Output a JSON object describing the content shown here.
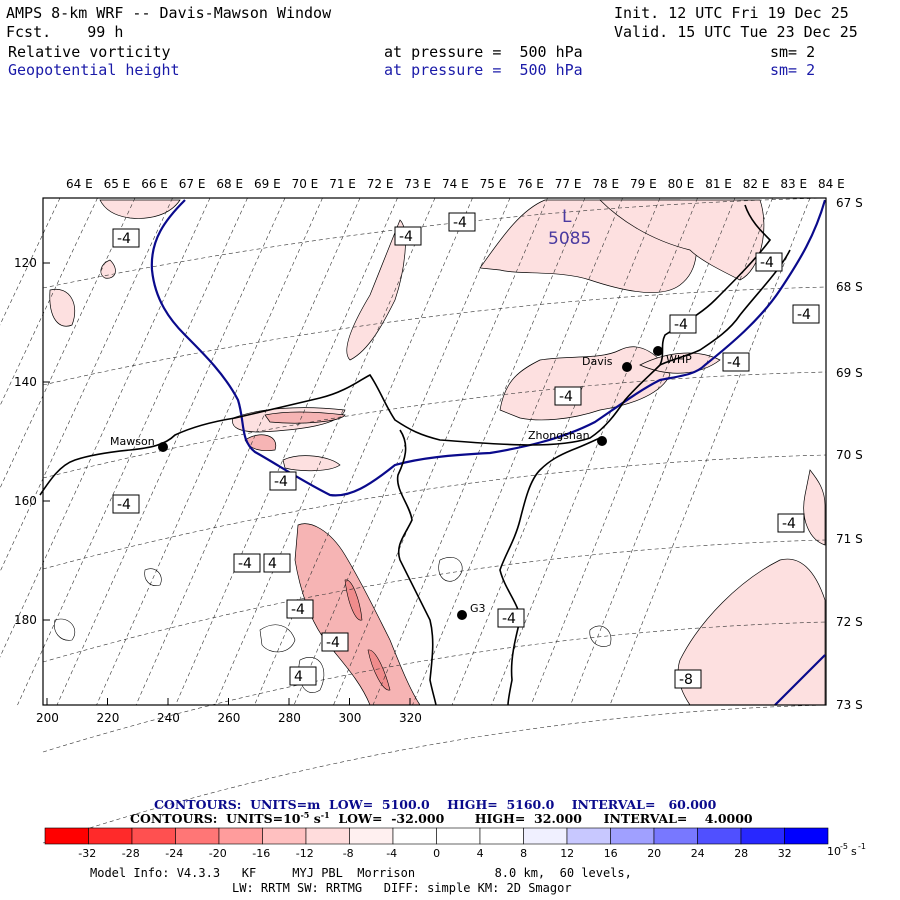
{
  "header": {
    "title": "AMPS 8-km WRF -- Davis-Mawson Window",
    "init": "Init. 12 UTC Fri 19 Dec 25",
    "fcst": "Fcst.    99 h",
    "valid": "Valid. 15 UTC Tue 23 Dec 25",
    "field1": "Relative vorticity",
    "field1_level": "at pressure =  500 hPa",
    "field1_sm": "sm= 2",
    "field2": "Geopotential height",
    "field2_level": "at pressure =  500 hPa",
    "field2_sm": "sm= 2"
  },
  "map": {
    "top_lon_labels": [
      "64 E",
      "65 E",
      "66 E",
      "67 E",
      "68 E",
      "69 E",
      "70 E",
      "71 E",
      "72 E",
      "73 E",
      "74 E",
      "75 E",
      "76 E",
      "77 E",
      "78 E",
      "79 E",
      "80 E",
      "81 E",
      "82 E",
      "83 E",
      "84 E"
    ],
    "right_lat_labels": [
      "67 S",
      "68 S",
      "69 S",
      "70 S",
      "71 S",
      "72 S",
      "73 S"
    ],
    "x_ticks": [
      "200",
      "220",
      "240",
      "260",
      "280",
      "300",
      "320"
    ],
    "y_ticks": [
      "120",
      "140",
      "160",
      "180"
    ],
    "stations": [
      "Mawson",
      "Davis",
      "WHP",
      "Zhongshan",
      "G3"
    ],
    "low_label": "L",
    "low_value": "5085",
    "contour_labels": [
      "-4",
      "-4",
      "-4",
      "-4",
      "-4",
      "-4",
      "-4",
      "-4",
      "-4",
      "-4",
      "-4",
      "-4",
      "-4",
      "-4",
      "4",
      "4",
      "-4",
      "-8",
      "-4",
      "-4"
    ],
    "colors": {
      "vort_light": "#fde0e0",
      "vort_mid": "#f8b8b8",
      "height_line": "#0a0a8c",
      "coast": "#000000"
    }
  },
  "footer": {
    "contours1": "CONTOURS:  UNITS=m  LOW=  5100.0    HIGH=  5160.0    INTERVAL=   60.000",
    "contours2": "CONTOURS:  UNITS=10",
    "contours2_exp": "-5",
    "contours2_rest": " s",
    "contours2_exp2": "-1",
    "contours2_tail": "  LOW=  -32.000       HIGH=  32.000     INTERVAL=    4.0000",
    "colorbar_labels": [
      "-32",
      "-28",
      "-24",
      "-20",
      "-16",
      "-12",
      "-8",
      "-4",
      "0",
      "4",
      "8",
      "12",
      "16",
      "20",
      "24",
      "28",
      "32"
    ],
    "colorbar_unit": "10",
    "colorbar_unit_exp": "-5",
    "colorbar_unit_s": "s",
    "colorbar_unit_exp2": "-1",
    "colorbar_colors": [
      "#ff0000",
      "#ff2a2a",
      "#ff5050",
      "#ff7676",
      "#ff9c9c",
      "#ffc0c0",
      "#ffdcdc",
      "#fff0f0",
      "#ffffff",
      "#ffffff",
      "#f0f0ff",
      "#c8c8ff",
      "#a0a0ff",
      "#7878ff",
      "#5050ff",
      "#2828ff",
      "#0000ff"
    ],
    "model_info": "Model Info: V4.3.3   KF     MYJ PBL  Morrison           8.0 km,  60 levels,",
    "model_info2": "LW: RRTM SW: RRTMG   DIFF: simple KM: 2D Smagor"
  }
}
